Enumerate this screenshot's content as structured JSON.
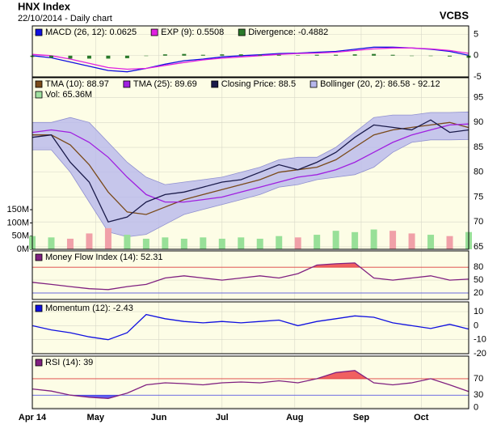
{
  "header": {
    "title": "HNX Index",
    "subtitle": "22/10/2014 - Daily chart",
    "source": "VCBS"
  },
  "x_axis": {
    "x": [
      0,
      6,
      12,
      18,
      24,
      30,
      36,
      42,
      48,
      54,
      60,
      66,
      72,
      78,
      84,
      90,
      96,
      102,
      108,
      114,
      120,
      126,
      132,
      138
    ],
    "xlim": [
      0,
      138
    ],
    "xticks": [
      {
        "value": 0,
        "label": "Apr 14"
      },
      {
        "value": 20,
        "label": "May"
      },
      {
        "value": 40,
        "label": "Jun"
      },
      {
        "value": 60,
        "label": "Jul"
      },
      {
        "value": 83,
        "label": "Aug"
      },
      {
        "value": 104,
        "label": "Sep"
      },
      {
        "value": 123,
        "label": "Oct"
      }
    ]
  },
  "chart_data": [
    {
      "type": "line",
      "ylim": [
        -5,
        7
      ],
      "yticks": [
        -5,
        0,
        5
      ],
      "series": [
        {
          "name": "MACD (26, 12): 0.0625",
          "color": "#1010e0",
          "style": "line",
          "values": [
            0,
            -0.5,
            -1.5,
            -2.5,
            -3.5,
            -3.8,
            -3,
            -2,
            -1.2,
            -0.8,
            -0.3,
            0,
            0.2,
            0.5,
            0.6,
            0.8,
            1,
            1.5,
            2,
            2,
            1.8,
            1.5,
            1,
            0.06
          ]
        },
        {
          "name": "EXP (9): 0.5508",
          "color": "#e020e0",
          "style": "line",
          "values": [
            0.3,
            0,
            -0.8,
            -1.8,
            -2.8,
            -3.2,
            -3,
            -2.3,
            -1.6,
            -1,
            -0.6,
            -0.3,
            0,
            0.3,
            0.5,
            0.6,
            0.8,
            1.2,
            1.6,
            1.8,
            1.8,
            1.6,
            1.2,
            0.55
          ]
        },
        {
          "name": "Divergence: -0.4882",
          "color": "#2a7a2a",
          "style": "bar",
          "values": [
            -0.3,
            -0.5,
            -0.7,
            -0.7,
            -0.7,
            -0.6,
            0,
            0.3,
            0.4,
            0.2,
            0.3,
            0.3,
            0.2,
            0.2,
            0.1,
            0.2,
            0.2,
            0.3,
            0.4,
            0.2,
            0,
            -0.1,
            -0.2,
            -0.49
          ]
        }
      ]
    },
    {
      "type": "line",
      "ylim": [
        64.5,
        99
      ],
      "yticks": [
        65,
        70,
        75,
        80,
        85,
        90,
        95
      ],
      "band": {
        "name": "Bollinger (20, 2): 86.58 - 92.12",
        "color": "#b8b8ec",
        "upper": [
          90,
          90,
          91,
          90,
          86,
          82,
          79,
          77.5,
          78,
          78.5,
          79,
          80,
          81,
          82.5,
          83,
          83,
          85,
          88,
          91,
          91.5,
          91.5,
          92,
          92,
          92.12
        ],
        "lower": [
          84.5,
          84.5,
          80,
          74,
          68,
          67,
          67.5,
          69.5,
          71.5,
          72.5,
          73.5,
          74.5,
          75.5,
          77,
          77.5,
          78.5,
          79,
          79.5,
          81,
          84,
          86,
          86.5,
          86.5,
          86.58
        ]
      },
      "volume": {
        "name": "Vol: 65.36M",
        "color": "#a0e0a0",
        "up_color": "#98e098",
        "down_color": "#f0a0a8",
        "vlim": [
          0,
          650
        ],
        "vticks": [
          {
            "value": 0,
            "label": "0M"
          },
          {
            "value": 50,
            "label": "50M"
          },
          {
            "value": 100,
            "label": "100M"
          },
          {
            "value": 150,
            "label": "150M"
          }
        ],
        "values": [
          50,
          45,
          40,
          60,
          80,
          55,
          40,
          45,
          40,
          45,
          40,
          45,
          40,
          50,
          45,
          55,
          70,
          65,
          75,
          70,
          60,
          55,
          50,
          65.36
        ]
      },
      "series": [
        {
          "name": "TMA (10): 88.97",
          "color": "#7a4a1a",
          "style": "line",
          "values": [
            87.5,
            87.5,
            85.5,
            81.5,
            76,
            72,
            71.5,
            73,
            74.5,
            75.5,
            76.5,
            77.5,
            78.5,
            80,
            80.5,
            81,
            82.5,
            85,
            87.5,
            88.5,
            89,
            89.5,
            90,
            88.97
          ]
        },
        {
          "name": "TMA (25): 89.69",
          "color": "#a020e0",
          "style": "line",
          "values": [
            88,
            88.5,
            88,
            86,
            83,
            79,
            75.5,
            74,
            74,
            74.5,
            75,
            76,
            77,
            78,
            79,
            79.5,
            80.5,
            82,
            84,
            86,
            87.5,
            88.5,
            89.5,
            89.69
          ]
        },
        {
          "name": "Closing Price: 88.5",
          "color": "#1a1a4a",
          "style": "line",
          "values": [
            87,
            87.5,
            82,
            78,
            70,
            71,
            74,
            75.5,
            76,
            77,
            78,
            78.5,
            80,
            81.5,
            80.5,
            82,
            84,
            87,
            89.5,
            89,
            88.5,
            90.5,
            88,
            88.5
          ]
        }
      ]
    },
    {
      "type": "line",
      "ylim": [
        5,
        118
      ],
      "yticks": [
        20,
        50,
        80
      ],
      "thresholds": [
        20,
        80
      ],
      "fill_above_color": "#f06060",
      "series": [
        {
          "name": "Money Flow Index (14): 52.31",
          "color": "#802080",
          "style": "line",
          "values": [
            45,
            40,
            35,
            30,
            28,
            35,
            40,
            55,
            60,
            55,
            50,
            55,
            60,
            55,
            65,
            85,
            88,
            90,
            55,
            50,
            55,
            60,
            50,
            52.31
          ]
        }
      ]
    },
    {
      "type": "line",
      "ylim": [
        -20,
        17
      ],
      "yticks": [
        -20,
        -10,
        0,
        10
      ],
      "series": [
        {
          "name": "Momentum (12): -2.43",
          "color": "#1010e0",
          "style": "line",
          "values": [
            0,
            -3,
            -5,
            -8,
            -10,
            -5,
            8,
            5,
            3,
            2,
            3,
            2,
            3,
            4,
            0,
            3,
            5,
            7,
            6,
            2,
            0,
            -2,
            1,
            -2.43
          ]
        }
      ]
    },
    {
      "type": "line",
      "ylim": [
        -3,
        125
      ],
      "yticks": [
        0,
        30,
        70
      ],
      "thresholds": [
        30,
        70
      ],
      "fill_above_color": "#f06060",
      "fill_below_color": "#6060f0",
      "series": [
        {
          "name": "RSI (14): 39",
          "color": "#802080",
          "style": "line",
          "values": [
            45,
            40,
            30,
            25,
            22,
            35,
            55,
            60,
            58,
            55,
            60,
            62,
            60,
            65,
            60,
            70,
            85,
            90,
            60,
            55,
            60,
            70,
            55,
            39
          ]
        }
      ]
    }
  ]
}
